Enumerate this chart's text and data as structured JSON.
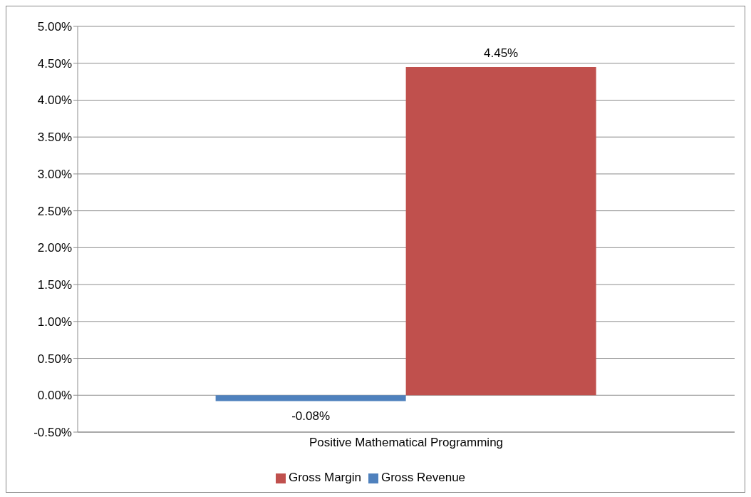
{
  "chart_data": {
    "type": "bar",
    "categories": [
      "Positive Mathematical Programming"
    ],
    "series": [
      {
        "name": "Gross Revenue",
        "color": "#4f81bd",
        "values": [
          -0.08
        ],
        "value_labels": [
          "-0.08%"
        ]
      },
      {
        "name": "Gross Margin",
        "color": "#c0504d",
        "values": [
          4.45
        ],
        "value_labels": [
          "4.45%"
        ]
      }
    ],
    "ylim": [
      -0.5,
      5
    ],
    "yticks": [
      {
        "value": -0.5,
        "label": "-0.50%"
      },
      {
        "value": 0,
        "label": "0.00%"
      },
      {
        "value": 0.5,
        "label": "0.50%"
      },
      {
        "value": 1,
        "label": "1.00%"
      },
      {
        "value": 1.5,
        "label": "1.50%"
      },
      {
        "value": 2,
        "label": "2.00%"
      },
      {
        "value": 2.5,
        "label": "2.50%"
      },
      {
        "value": 3,
        "label": "3.00%"
      },
      {
        "value": 3.5,
        "label": "3.50%"
      },
      {
        "value": 4,
        "label": "4.00%"
      },
      {
        "value": 4.5,
        "label": "4.50%"
      },
      {
        "value": 5,
        "label": "5.00%"
      }
    ],
    "grid": "y",
    "legend": "bottom"
  }
}
